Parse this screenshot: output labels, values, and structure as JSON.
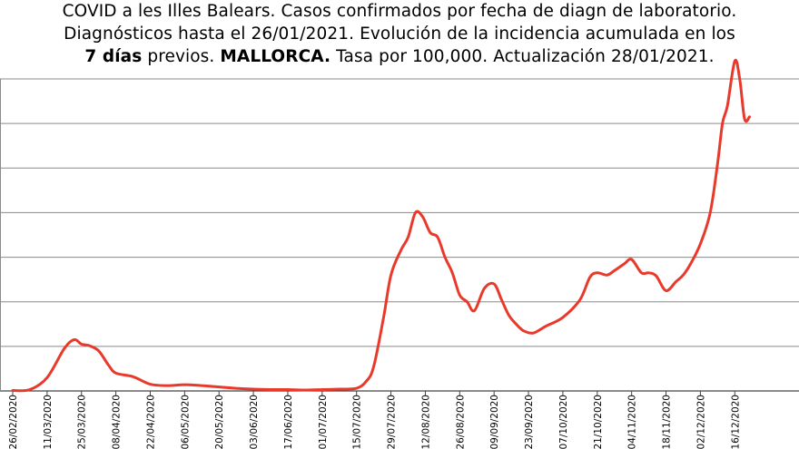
{
  "title": {
    "line1": "COVID a les Illes Balears. Casos confirmados por fecha de diagn de laboratorio.",
    "line2": "Diagnósticos hasta el 26/01/2021.  Evolución de la incidencia acumulada en los",
    "line3_bold1": "7 días",
    "line3_mid": " previos. ",
    "line3_bold2": "MALLORCA.",
    "line3_end": " Tasa por 100,000. Actualización  28/01/2021."
  },
  "chart_data": {
    "type": "line",
    "title": "COVID a les Illes Balears. Casos confirmados por fecha de diagn de laboratorio. Diagnósticos hasta el 26/01/2021. Evolución de la incidencia acumulada en los 7 días previos. MALLORCA. Tasa por 100,000. Actualización 28/01/2021.",
    "xlabel": "",
    "ylabel": "",
    "ylim": [
      0,
      700
    ],
    "grid": true,
    "color": "#e8392b",
    "x_tick_labels": [
      "26/02/2020",
      "11/03/2020",
      "25/03/2020",
      "08/04/2020",
      "22/04/2020",
      "06/05/2020",
      "20/05/2020",
      "03/06/2020",
      "17/06/2020",
      "01/07/2020",
      "15/07/2020",
      "29/07/2020",
      "12/08/2020",
      "26/08/2020",
      "09/09/2020",
      "23/09/2020",
      "07/10/2020",
      "21/10/2020",
      "04/11/2020",
      "18/11/2020",
      "02/12/2020",
      "16/12/2020"
    ],
    "series": [
      {
        "x": [
          "2020-02-26",
          "2020-03-04",
          "2020-03-11",
          "2020-03-18",
          "2020-03-22",
          "2020-03-25",
          "2020-03-28",
          "2020-04-01",
          "2020-04-05",
          "2020-04-08",
          "2020-04-15",
          "2020-04-22",
          "2020-04-29",
          "2020-05-06",
          "2020-05-13",
          "2020-05-20",
          "2020-05-27",
          "2020-06-03",
          "2020-06-10",
          "2020-06-17",
          "2020-06-24",
          "2020-07-01",
          "2020-07-08",
          "2020-07-15",
          "2020-07-19",
          "2020-07-22",
          "2020-07-26",
          "2020-07-29",
          "2020-08-02",
          "2020-08-05",
          "2020-08-08",
          "2020-08-11",
          "2020-08-14",
          "2020-08-17",
          "2020-08-20",
          "2020-08-23",
          "2020-08-26",
          "2020-08-29",
          "2020-09-01",
          "2020-09-05",
          "2020-09-09",
          "2020-09-12",
          "2020-09-15",
          "2020-09-18",
          "2020-09-21",
          "2020-09-25",
          "2020-09-30",
          "2020-10-07",
          "2020-10-14",
          "2020-10-18",
          "2020-10-21",
          "2020-10-25",
          "2020-10-28",
          "2020-11-01",
          "2020-11-04",
          "2020-11-08",
          "2020-11-11",
          "2020-11-14",
          "2020-11-18",
          "2020-11-22",
          "2020-11-25",
          "2020-11-28",
          "2020-12-02",
          "2020-12-06",
          "2020-12-09",
          "2020-12-11",
          "2020-12-13",
          "2020-12-16",
          "2020-12-18",
          "2020-12-20",
          "2020-12-22"
        ],
        "y": [
          1,
          3,
          30,
          95,
          115,
          105,
          102,
          90,
          58,
          40,
          32,
          15,
          12,
          14,
          12,
          9,
          6,
          4,
          3,
          3,
          2,
          3,
          4,
          6,
          22,
          55,
          165,
          260,
          315,
          345,
          400,
          390,
          355,
          345,
          300,
          265,
          215,
          200,
          180,
          230,
          240,
          205,
          170,
          150,
          135,
          130,
          145,
          165,
          205,
          255,
          265,
          260,
          270,
          285,
          295,
          265,
          265,
          258,
          225,
          245,
          260,
          285,
          330,
          400,
          510,
          600,
          640,
          740,
          700,
          610,
          615
        ]
      }
    ]
  }
}
